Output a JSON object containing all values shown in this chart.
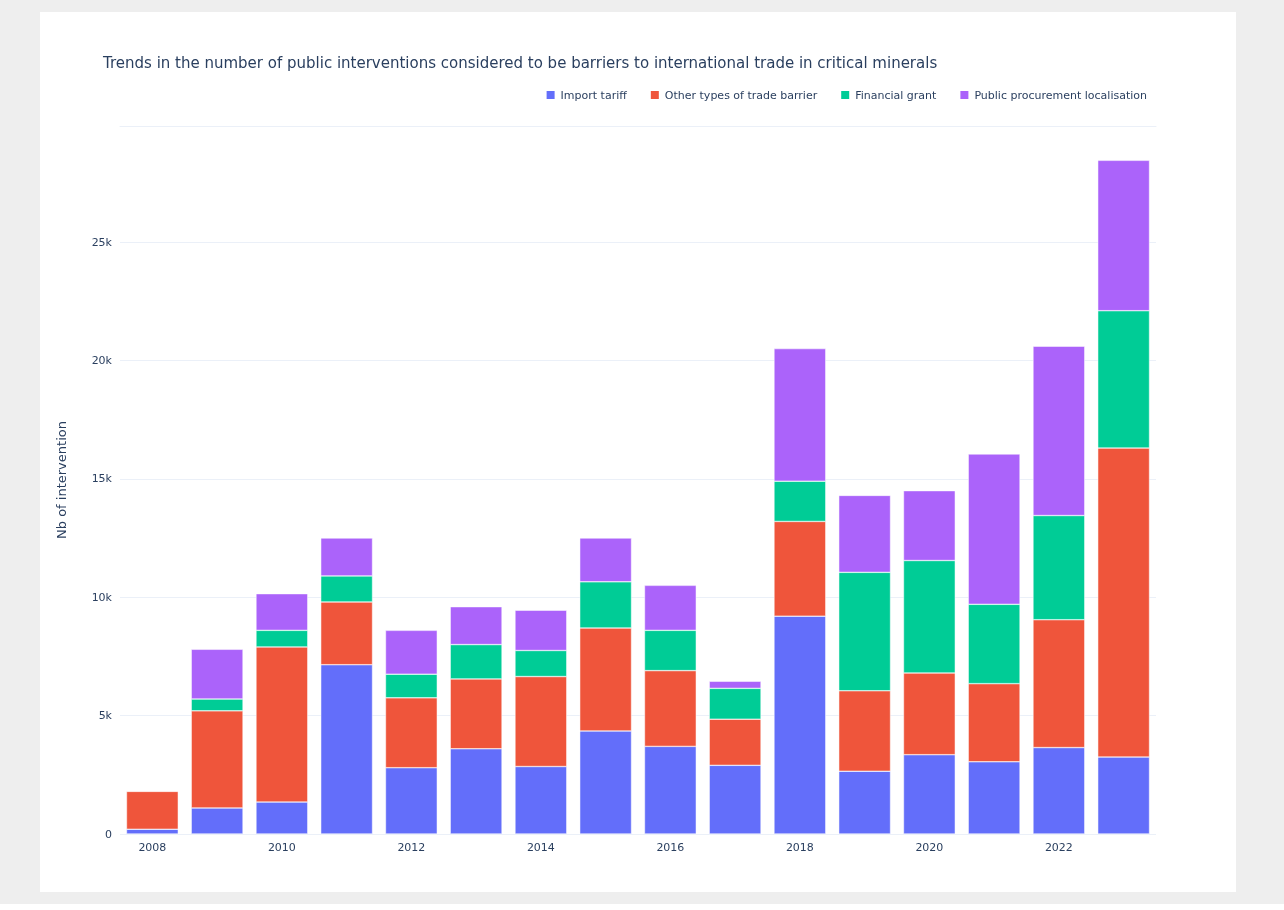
{
  "chart_data": {
    "type": "bar",
    "title": "Trends in the number of public interventions considered to be barriers to international trade in critical minerals",
    "ylabel": "Nb of intervention",
    "stacked": true,
    "categories": [
      "2008",
      null,
      "2010",
      null,
      "2012",
      null,
      "2014",
      null,
      "2016",
      null,
      "2018",
      null,
      "2020",
      null,
      "2022",
      null
    ],
    "series": [
      {
        "name": "Import tariff",
        "color": "#636efa",
        "values": [
          200,
          1100,
          1350,
          7150,
          2800,
          3600,
          2850,
          4350,
          3700,
          2900,
          9200,
          2650,
          3350,
          3050,
          3650,
          3250
        ]
      },
      {
        "name": "Other types of trade barrier",
        "color": "#ef553b",
        "values": [
          1600,
          4100,
          6550,
          2650,
          2950,
          2950,
          3800,
          4350,
          3200,
          1950,
          4000,
          3400,
          3450,
          3300,
          5400,
          13050
        ]
      },
      {
        "name": "Financial grant",
        "color": "#00cc96",
        "values": [
          0,
          500,
          700,
          1100,
          1000,
          1450,
          1100,
          1950,
          1700,
          1300,
          1700,
          5000,
          4750,
          3350,
          4400,
          5800
        ]
      },
      {
        "name": "Public procurement localisation",
        "color": "#ab63fa",
        "values": [
          0,
          2100,
          1550,
          1600,
          1850,
          1600,
          1700,
          1850,
          1900,
          300,
          5600,
          3250,
          2950,
          6350,
          7150,
          6350
        ]
      }
    ],
    "ylim": [
      0,
      29900
    ],
    "yticks": [
      0,
      {
        "value": 5000,
        "label": "5k"
      },
      {
        "value": 10000,
        "label": "10k"
      },
      {
        "value": 15000,
        "label": "15k"
      },
      {
        "value": 20000,
        "label": "20k"
      },
      {
        "value": 25000,
        "label": "25k"
      }
    ],
    "grid": "y",
    "legend": "top right"
  }
}
